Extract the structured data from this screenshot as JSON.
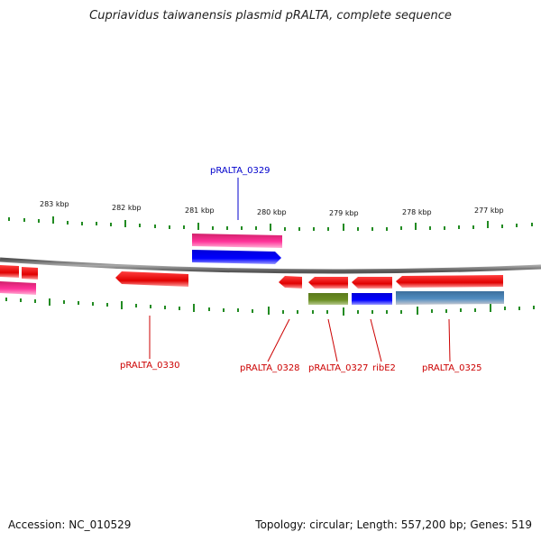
{
  "title": "Cupriavidus taiwanensis plasmid pRALTA, complete sequence",
  "footer": {
    "accession": "Accession: NC_010529",
    "summary": "Topology: circular; Length: 557,200 bp; Genes: 519"
  },
  "scale": {
    "labels": [
      "283 kbp",
      "282 kbp",
      "281 kbp",
      "280 kbp",
      "279 kbp",
      "278 kbp",
      "277 kbp"
    ]
  },
  "genes": [
    {
      "id": "pRALTA_0329",
      "label": "pRALTA_0329",
      "strand": "+",
      "color": "#0000cc"
    },
    {
      "id": "pRALTA_0330",
      "label": "pRALTA_0330",
      "strand": "-",
      "color": "#cc0000"
    },
    {
      "id": "pRALTA_0328",
      "label": "pRALTA_0328",
      "strand": "-",
      "color": "#cc0000"
    },
    {
      "id": "pRALTA_0327",
      "label": "pRALTA_0327",
      "strand": "-",
      "color": "#cc0000"
    },
    {
      "id": "ribE2",
      "label": "ribE2",
      "strand": "-",
      "color": "#cc0000"
    },
    {
      "id": "pRALTA_0325",
      "label": "pRALTA_0325",
      "strand": "-",
      "color": "#cc0000"
    }
  ],
  "colors": {
    "cds": "#ff0000",
    "gene_magenta": "#ff3399",
    "blue_feature": "#0000ff",
    "green_feature": "#6b8e23",
    "steelblue_feature": "#4682b4",
    "tick": "#228b22",
    "backbone": "#808080"
  }
}
